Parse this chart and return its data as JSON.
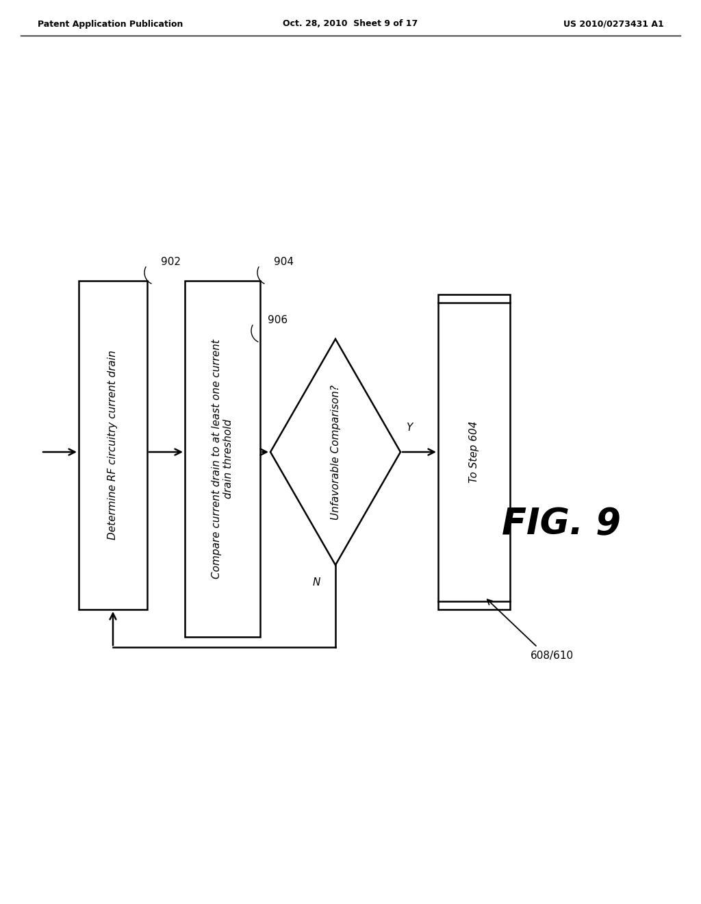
{
  "bg_color": "#ffffff",
  "header_left": "Patent Application Publication",
  "header_center": "Oct. 28, 2010  Sheet 9 of 17",
  "header_right": "US 2010/0273431 A1",
  "fig_label": "FIG. 9",
  "box1_label": "Determine RF circuitry current drain",
  "box2_label": "Compare current drain to at least one current\ndrain threshold",
  "diamond_label": "Unfavorable Comparison?",
  "box3_label": "To Step 604",
  "node_902": "902",
  "node_904": "904",
  "node_906": "906",
  "node_608_610": "608/610",
  "arrow_y_label": "Y",
  "arrow_n_label": "N",
  "line_color": "#000000",
  "text_color": "#000000",
  "box_fill": "#ffffff",
  "lw": 1.8,
  "font_size_header": 9,
  "font_size_fig": 38,
  "font_size_node": 11,
  "font_size_box": 11,
  "font_size_diamond": 11
}
